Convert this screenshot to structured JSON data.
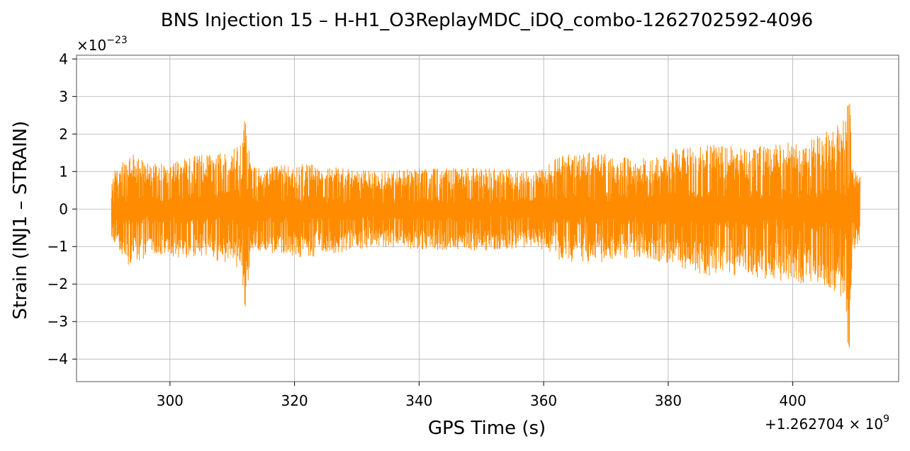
{
  "chart_data": {
    "type": "line",
    "title": "BNS Injection 15 – H-H1_O3ReplayMDC_iDQ_combo-1262702592-4096",
    "xlabel": "GPS Time (s)",
    "ylabel": "Strain (INJ1 – STRAIN)",
    "x_offset_label": "+1.262704",
    "x_offset_exp": "9",
    "y_scale_label": "×10",
    "y_scale_exp": "−23",
    "xlim": [
      285,
      417
    ],
    "ylim": [
      -4.6,
      4.1
    ],
    "xticks": [
      300,
      320,
      340,
      360,
      380,
      400
    ],
    "yticks": [
      -4,
      -3,
      -2,
      -1,
      0,
      1,
      2,
      3,
      4
    ],
    "ytick_labels": [
      "−4",
      "−3",
      "−2",
      "−1",
      "0",
      "1",
      "2",
      "3",
      "4"
    ],
    "grid": true,
    "series": [
      {
        "color": "#ff8c00",
        "x_range": [
          290.6,
          410.8
        ],
        "envelope": [
          {
            "x": 290.6,
            "lo": -0.75,
            "hi": 0.95
          },
          {
            "x": 293.5,
            "lo": -1.55,
            "hi": 1.5
          },
          {
            "x": 297.0,
            "lo": -1.2,
            "hi": 1.2
          },
          {
            "x": 302.0,
            "lo": -1.3,
            "hi": 1.35
          },
          {
            "x": 306.0,
            "lo": -1.3,
            "hi": 1.5
          },
          {
            "x": 311.5,
            "lo": -1.6,
            "hi": 1.7
          },
          {
            "x": 312.1,
            "lo": -2.8,
            "hi": 2.55
          },
          {
            "x": 313.0,
            "lo": -1.1,
            "hi": 1.1
          },
          {
            "x": 322.0,
            "lo": -1.3,
            "hi": 1.2
          },
          {
            "x": 333.0,
            "lo": -1.0,
            "hi": 1.0
          },
          {
            "x": 343.0,
            "lo": -1.1,
            "hi": 1.1
          },
          {
            "x": 351.0,
            "lo": -1.1,
            "hi": 1.1
          },
          {
            "x": 359.0,
            "lo": -1.0,
            "hi": 1.0
          },
          {
            "x": 363.0,
            "lo": -1.4,
            "hi": 1.45
          },
          {
            "x": 368.0,
            "lo": -1.45,
            "hi": 1.55
          },
          {
            "x": 375.0,
            "lo": -1.3,
            "hi": 1.3
          },
          {
            "x": 381.0,
            "lo": -1.5,
            "hi": 1.6
          },
          {
            "x": 385.5,
            "lo": -1.8,
            "hi": 1.75
          },
          {
            "x": 392.0,
            "lo": -1.75,
            "hi": 1.65
          },
          {
            "x": 397.0,
            "lo": -1.9,
            "hi": 1.8
          },
          {
            "x": 402.0,
            "lo": -2.0,
            "hi": 1.85
          },
          {
            "x": 406.0,
            "lo": -2.1,
            "hi": 2.1
          },
          {
            "x": 408.4,
            "lo": -2.6,
            "hi": 2.4
          },
          {
            "x": 409.0,
            "lo": -4.2,
            "hi": 3.65
          },
          {
            "x": 409.6,
            "lo": -1.3,
            "hi": 1.1
          },
          {
            "x": 410.8,
            "lo": -0.9,
            "hi": 1.05
          }
        ]
      }
    ]
  }
}
